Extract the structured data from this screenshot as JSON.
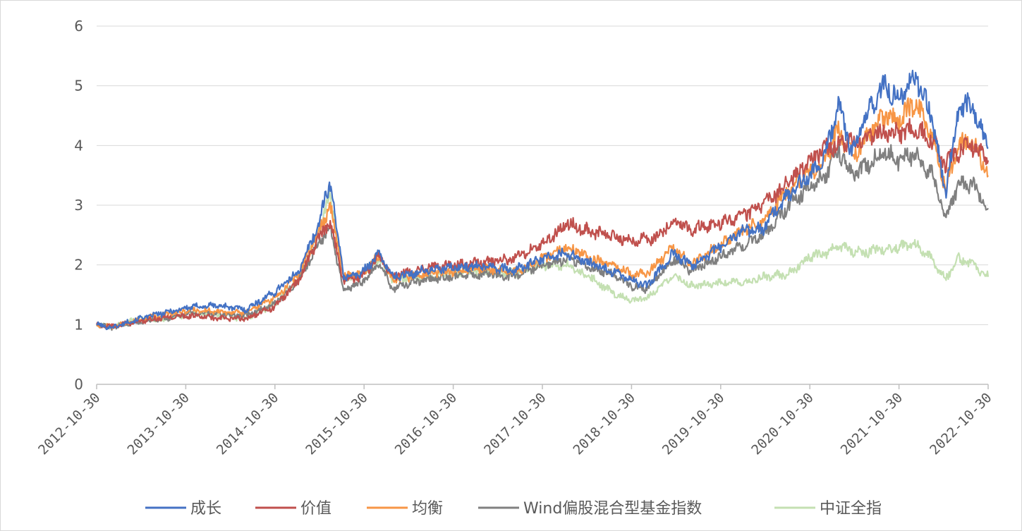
{
  "chart_data": {
    "type": "line",
    "x_ticks": [
      "2012-10-30",
      "2013-10-30",
      "2014-10-30",
      "2015-10-30",
      "2016-10-30",
      "2017-10-30",
      "2018-10-30",
      "2019-10-30",
      "2020-10-30",
      "2021-10-30",
      "2022-10-30"
    ],
    "y_ticks": [
      "0",
      "1",
      "2",
      "3",
      "4",
      "5",
      "6"
    ],
    "ylim": [
      0,
      6
    ],
    "grid": true,
    "legend_position": "bottom",
    "series": [
      {
        "name": "成长",
        "color": "#4472C4",
        "points": [
          [
            2012.83,
            1.0
          ],
          [
            2013.0,
            0.95
          ],
          [
            2013.3,
            1.1
          ],
          [
            2013.6,
            1.2
          ],
          [
            2013.9,
            1.3
          ],
          [
            2014.2,
            1.32
          ],
          [
            2014.5,
            1.25
          ],
          [
            2014.83,
            1.55
          ],
          [
            2015.1,
            1.9
          ],
          [
            2015.3,
            2.6
          ],
          [
            2015.45,
            3.4
          ],
          [
            2015.6,
            1.8
          ],
          [
            2015.8,
            1.85
          ],
          [
            2016.0,
            2.2
          ],
          [
            2016.15,
            1.8
          ],
          [
            2016.5,
            1.9
          ],
          [
            2016.83,
            1.95
          ],
          [
            2017.2,
            2.0
          ],
          [
            2017.5,
            1.9
          ],
          [
            2017.83,
            2.1
          ],
          [
            2018.1,
            2.2
          ],
          [
            2018.4,
            2.0
          ],
          [
            2018.6,
            1.9
          ],
          [
            2018.83,
            1.75
          ],
          [
            2019.0,
            1.65
          ],
          [
            2019.3,
            2.2
          ],
          [
            2019.5,
            2.0
          ],
          [
            2019.83,
            2.3
          ],
          [
            2020.1,
            2.6
          ],
          [
            2020.3,
            2.6
          ],
          [
            2020.6,
            3.2
          ],
          [
            2020.83,
            3.5
          ],
          [
            2021.0,
            3.8
          ],
          [
            2021.15,
            4.7
          ],
          [
            2021.3,
            3.9
          ],
          [
            2021.5,
            4.6
          ],
          [
            2021.65,
            5.0
          ],
          [
            2021.83,
            4.8
          ],
          [
            2022.0,
            5.2
          ],
          [
            2022.2,
            4.5
          ],
          [
            2022.35,
            3.2
          ],
          [
            2022.5,
            4.6
          ],
          [
            2022.65,
            4.7
          ],
          [
            2022.83,
            3.95
          ]
        ]
      },
      {
        "name": "价值",
        "color": "#C0504D",
        "points": [
          [
            2012.83,
            1.0
          ],
          [
            2013.0,
            0.97
          ],
          [
            2013.3,
            1.05
          ],
          [
            2013.6,
            1.12
          ],
          [
            2013.9,
            1.15
          ],
          [
            2014.2,
            1.1
          ],
          [
            2014.5,
            1.1
          ],
          [
            2014.83,
            1.3
          ],
          [
            2015.1,
            1.75
          ],
          [
            2015.3,
            2.4
          ],
          [
            2015.45,
            2.7
          ],
          [
            2015.6,
            1.75
          ],
          [
            2015.8,
            1.8
          ],
          [
            2016.0,
            2.15
          ],
          [
            2016.15,
            1.8
          ],
          [
            2016.5,
            1.95
          ],
          [
            2016.83,
            2.0
          ],
          [
            2017.2,
            2.05
          ],
          [
            2017.5,
            2.1
          ],
          [
            2017.83,
            2.35
          ],
          [
            2018.0,
            2.55
          ],
          [
            2018.1,
            2.7
          ],
          [
            2018.4,
            2.55
          ],
          [
            2018.6,
            2.5
          ],
          [
            2018.83,
            2.4
          ],
          [
            2019.1,
            2.45
          ],
          [
            2019.3,
            2.75
          ],
          [
            2019.5,
            2.6
          ],
          [
            2019.83,
            2.7
          ],
          [
            2020.1,
            2.85
          ],
          [
            2020.3,
            3.0
          ],
          [
            2020.6,
            3.4
          ],
          [
            2020.83,
            3.75
          ],
          [
            2021.0,
            3.95
          ],
          [
            2021.2,
            4.05
          ],
          [
            2021.4,
            4.1
          ],
          [
            2021.6,
            4.2
          ],
          [
            2021.83,
            4.2
          ],
          [
            2022.0,
            4.3
          ],
          [
            2022.2,
            4.1
          ],
          [
            2022.35,
            3.7
          ],
          [
            2022.5,
            3.9
          ],
          [
            2022.65,
            4.0
          ],
          [
            2022.83,
            3.75
          ]
        ]
      },
      {
        "name": "均衡",
        "color": "#F79646",
        "points": [
          [
            2012.83,
            1.0
          ],
          [
            2013.0,
            0.96
          ],
          [
            2013.3,
            1.08
          ],
          [
            2013.6,
            1.17
          ],
          [
            2013.9,
            1.25
          ],
          [
            2014.2,
            1.22
          ],
          [
            2014.5,
            1.2
          ],
          [
            2014.83,
            1.45
          ],
          [
            2015.1,
            1.85
          ],
          [
            2015.3,
            2.5
          ],
          [
            2015.45,
            3.0
          ],
          [
            2015.6,
            1.8
          ],
          [
            2015.8,
            1.85
          ],
          [
            2016.0,
            2.15
          ],
          [
            2016.15,
            1.75
          ],
          [
            2016.5,
            1.85
          ],
          [
            2016.83,
            1.9
          ],
          [
            2017.2,
            1.95
          ],
          [
            2017.5,
            1.85
          ],
          [
            2017.83,
            2.1
          ],
          [
            2018.1,
            2.3
          ],
          [
            2018.4,
            2.1
          ],
          [
            2018.6,
            2.0
          ],
          [
            2018.83,
            1.85
          ],
          [
            2019.0,
            1.85
          ],
          [
            2019.3,
            2.3
          ],
          [
            2019.5,
            2.0
          ],
          [
            2019.83,
            2.35
          ],
          [
            2020.1,
            2.6
          ],
          [
            2020.3,
            2.7
          ],
          [
            2020.6,
            3.3
          ],
          [
            2020.83,
            3.55
          ],
          [
            2021.0,
            3.75
          ],
          [
            2021.15,
            4.3
          ],
          [
            2021.3,
            3.8
          ],
          [
            2021.5,
            4.2
          ],
          [
            2021.65,
            4.5
          ],
          [
            2021.83,
            4.4
          ],
          [
            2022.0,
            4.7
          ],
          [
            2022.2,
            4.2
          ],
          [
            2022.35,
            3.3
          ],
          [
            2022.5,
            4.0
          ],
          [
            2022.65,
            4.1
          ],
          [
            2022.83,
            3.5
          ]
        ]
      },
      {
        "name": "Wind偏股混合型基金指数",
        "color": "#808080",
        "points": [
          [
            2012.83,
            1.0
          ],
          [
            2013.0,
            0.95
          ],
          [
            2013.3,
            1.05
          ],
          [
            2013.6,
            1.1
          ],
          [
            2013.9,
            1.2
          ],
          [
            2014.2,
            1.18
          ],
          [
            2014.5,
            1.15
          ],
          [
            2014.83,
            1.35
          ],
          [
            2015.1,
            1.75
          ],
          [
            2015.3,
            2.3
          ],
          [
            2015.45,
            2.65
          ],
          [
            2015.6,
            1.6
          ],
          [
            2015.8,
            1.7
          ],
          [
            2016.0,
            2.0
          ],
          [
            2016.15,
            1.6
          ],
          [
            2016.5,
            1.75
          ],
          [
            2016.83,
            1.8
          ],
          [
            2017.2,
            1.85
          ],
          [
            2017.5,
            1.8
          ],
          [
            2017.83,
            2.0
          ],
          [
            2018.1,
            2.1
          ],
          [
            2018.4,
            1.95
          ],
          [
            2018.6,
            1.85
          ],
          [
            2018.83,
            1.65
          ],
          [
            2019.0,
            1.6
          ],
          [
            2019.3,
            2.1
          ],
          [
            2019.5,
            1.9
          ],
          [
            2019.83,
            2.15
          ],
          [
            2020.1,
            2.35
          ],
          [
            2020.3,
            2.5
          ],
          [
            2020.6,
            3.0
          ],
          [
            2020.83,
            3.3
          ],
          [
            2021.0,
            3.5
          ],
          [
            2021.15,
            3.95
          ],
          [
            2021.3,
            3.5
          ],
          [
            2021.5,
            3.7
          ],
          [
            2021.65,
            3.9
          ],
          [
            2021.83,
            3.75
          ],
          [
            2022.0,
            3.85
          ],
          [
            2022.2,
            3.5
          ],
          [
            2022.35,
            2.8
          ],
          [
            2022.5,
            3.35
          ],
          [
            2022.65,
            3.35
          ],
          [
            2022.83,
            2.95
          ]
        ]
      },
      {
        "name": "中证全指",
        "color": "#C4E0B2",
        "points": [
          [
            2012.83,
            1.0
          ],
          [
            2013.0,
            0.96
          ],
          [
            2013.3,
            1.1
          ],
          [
            2013.6,
            1.08
          ],
          [
            2013.9,
            1.2
          ],
          [
            2014.2,
            1.15
          ],
          [
            2014.5,
            1.1
          ],
          [
            2014.83,
            1.35
          ],
          [
            2015.1,
            1.8
          ],
          [
            2015.3,
            2.5
          ],
          [
            2015.45,
            3.2
          ],
          [
            2015.6,
            1.75
          ],
          [
            2015.8,
            1.85
          ],
          [
            2016.0,
            2.1
          ],
          [
            2016.15,
            1.75
          ],
          [
            2016.5,
            1.8
          ],
          [
            2016.83,
            1.85
          ],
          [
            2017.2,
            1.9
          ],
          [
            2017.5,
            1.85
          ],
          [
            2017.83,
            2.0
          ],
          [
            2018.1,
            2.0
          ],
          [
            2018.4,
            1.75
          ],
          [
            2018.6,
            1.55
          ],
          [
            2018.83,
            1.4
          ],
          [
            2019.0,
            1.45
          ],
          [
            2019.3,
            1.8
          ],
          [
            2019.5,
            1.65
          ],
          [
            2019.83,
            1.7
          ],
          [
            2020.1,
            1.7
          ],
          [
            2020.3,
            1.8
          ],
          [
            2020.6,
            1.85
          ],
          [
            2020.83,
            2.15
          ],
          [
            2021.0,
            2.2
          ],
          [
            2021.2,
            2.3
          ],
          [
            2021.4,
            2.2
          ],
          [
            2021.6,
            2.25
          ],
          [
            2021.83,
            2.3
          ],
          [
            2022.0,
            2.35
          ],
          [
            2022.2,
            2.1
          ],
          [
            2022.35,
            1.75
          ],
          [
            2022.5,
            2.1
          ],
          [
            2022.65,
            2.0
          ],
          [
            2022.83,
            1.8
          ]
        ]
      }
    ]
  }
}
